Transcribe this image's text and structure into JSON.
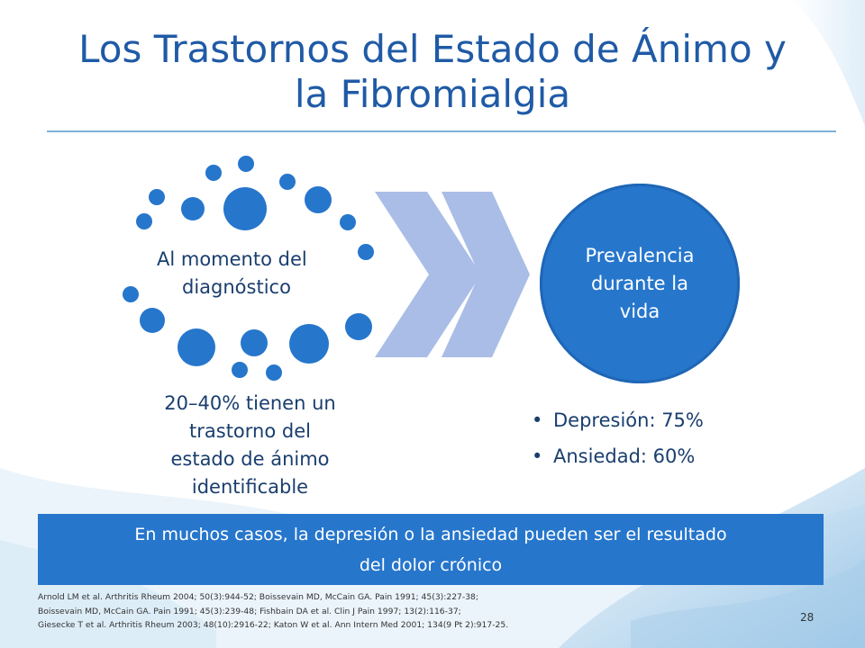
{
  "title": {
    "line1": "Los Trastornos del Estado de Ánimo y",
    "line2": "la Fibromialgia"
  },
  "left": {
    "cluster_label_line1": "Al momento del",
    "cluster_label_line2": "diagnóstico",
    "text_line1": "20–40% tienen un",
    "text_line2": "trastorno del",
    "text_line3": "estado de ánimo",
    "text_line4": "identificable"
  },
  "right": {
    "circle_label_line1": "Prevalencia",
    "circle_label_line2": "durante la",
    "circle_label_line3": "vida",
    "bullets": [
      "Depresión: 75%",
      "Ansiedad: 60%"
    ]
  },
  "banner": {
    "line1": "En muchos casos, la depresión o la ansiedad pueden ser el resultado",
    "line2": "del dolor crónico"
  },
  "references": [
    "Arnold LM et al. Arthritis Rheum 2004; 50(3):944-52; Boissevain MD, McCain GA. Pain 1991; 45(3):227-38;",
    "Boissevain MD, McCain GA. Pain 1991; 45(3):239-48; Fishbain DA et al. Clin J Pain 1997; 13(2):116-37;",
    "Giesecke T et al. Arthritis Rheum 2003; 48(10):2916-22; Katon W et al. Ann Intern Med 2001; 134(9 Pt 2):917-25."
  ],
  "page_number": "28",
  "colors": {
    "title": "#1f5aa6",
    "accent_blue": "#2676cc",
    "chevron": "#a9bde6",
    "text_dark": "#1a3e6e"
  }
}
